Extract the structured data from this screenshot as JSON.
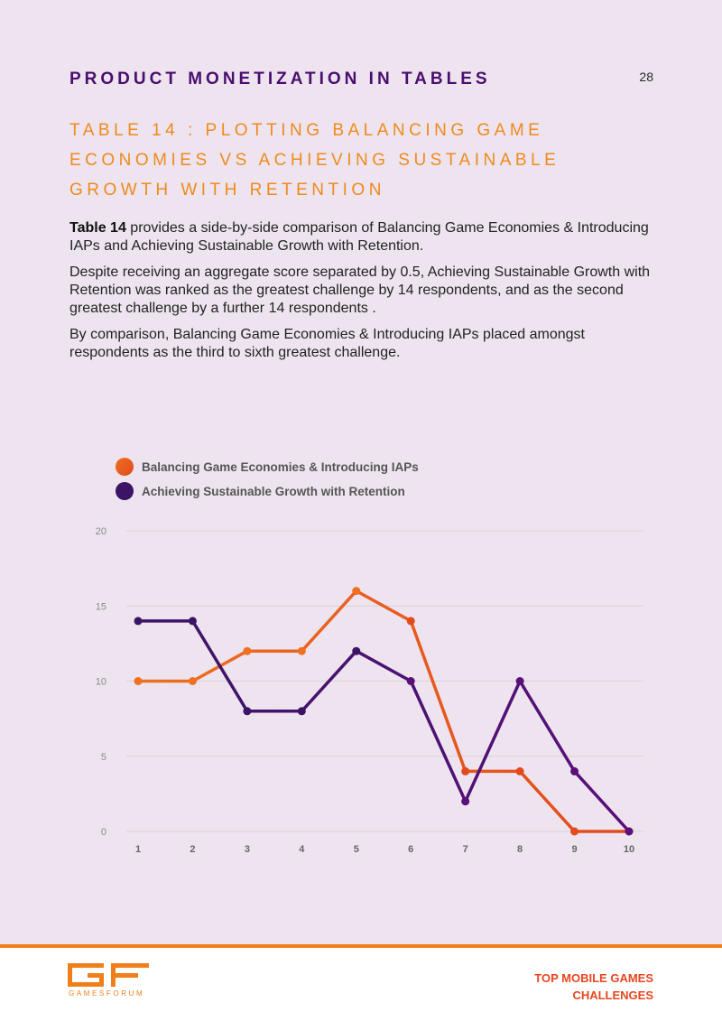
{
  "header": {
    "section_title": "PRODUCT MONETIZATION IN TABLES",
    "page_number": "28"
  },
  "table_title": "TABLE 14 : PLOTTING BALANCING GAME ECONOMIES VS ACHIEVING SUSTAINABLE GROWTH WITH RETENTION",
  "body": {
    "p1_bold": "Table 14",
    "p1_rest": " provides a side-by-side comparison of Balancing Game Economies & Introducing IAPs and Achieving Sustainable Growth with Retention.",
    "p2": "Despite receiving an aggregate score separated by 0.5, Achieving Sustainable Growth with Retention was ranked as the greatest challenge by 14 respondents, and as the second greatest challenge by a further 14 respondents .",
    "p3": "By comparison, Balancing Game Economies & Introducing IAPs placed amongst respondents as the third to sixth greatest challenge."
  },
  "colors": {
    "series1": "#ee7020",
    "series1_end": "#e24a1e",
    "series2": "#3b1466",
    "series2_end": "#5a0f7a",
    "grid": "#d9ccd4",
    "tick": "#8a8a8a",
    "accent": "#f08a1c",
    "title": "#4a0e6e"
  },
  "chart_data": {
    "type": "line",
    "categories": [
      "1",
      "2",
      "3",
      "4",
      "5",
      "6",
      "7",
      "8",
      "9",
      "10"
    ],
    "x": [
      1,
      2,
      3,
      4,
      5,
      6,
      7,
      8,
      9,
      10
    ],
    "series": [
      {
        "name": "Balancing Game Economies & Introducing IAPs",
        "values": [
          10,
          10,
          12,
          12,
          16,
          14,
          4,
          4,
          0,
          0
        ]
      },
      {
        "name": "Achieving Sustainable Growth with Retention",
        "values": [
          14,
          14,
          8,
          8,
          12,
          10,
          2,
          10,
          4,
          0
        ]
      }
    ],
    "ylim": [
      0,
      20
    ],
    "yticks": [
      0,
      5,
      10,
      15,
      20
    ],
    "grid": true,
    "legend_position": "top-left"
  },
  "footer": {
    "logo_text": "GAMESFORUM",
    "title_line1": "TOP MOBILE GAMES",
    "title_line2": "CHALLENGES"
  }
}
